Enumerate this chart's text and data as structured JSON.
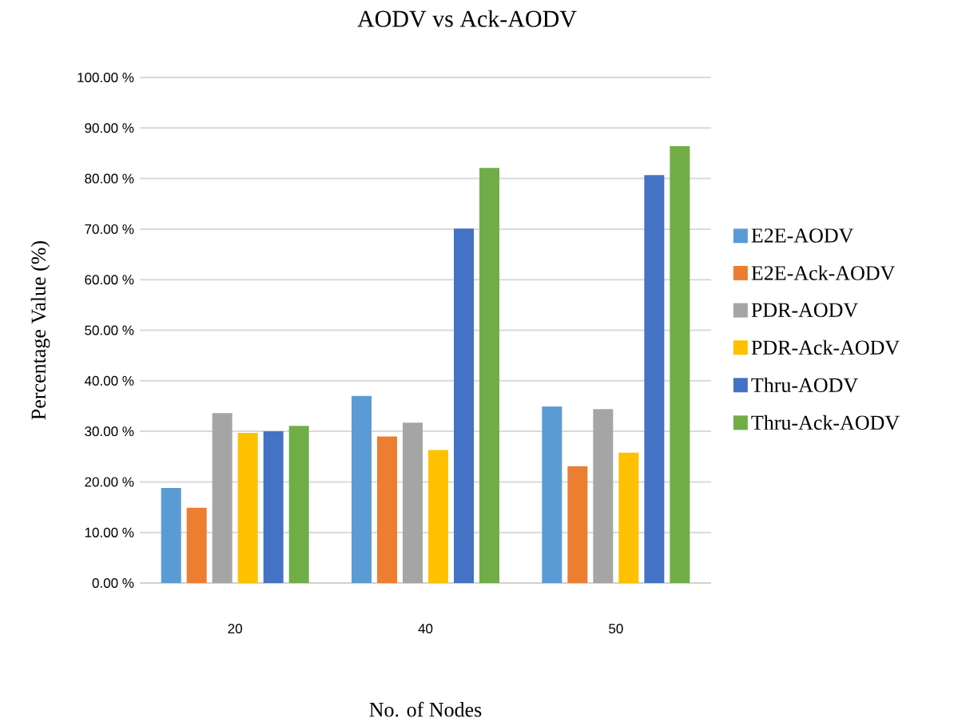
{
  "chart_data": {
    "type": "bar",
    "title": "AODV vs Ack-AODV",
    "xlabel": "No. of Nodes",
    "ylabel": "Percentage Value (%)",
    "categories": [
      "20",
      "40",
      "50"
    ],
    "series": [
      {
        "name": "E2E-AODV",
        "color": "#5b9bd5",
        "values": [
          18.8,
          37.0,
          34.9
        ]
      },
      {
        "name": "E2E-Ack-AODV",
        "color": "#ed7d31",
        "values": [
          14.9,
          29.0,
          23.1
        ]
      },
      {
        "name": "PDR-AODV",
        "color": "#a5a5a5",
        "values": [
          33.6,
          31.7,
          34.4
        ]
      },
      {
        "name": "PDR-Ack-AODV",
        "color": "#ffc000",
        "values": [
          29.7,
          26.3,
          25.8
        ]
      },
      {
        "name": "Thru-AODV",
        "color": "#4472c4",
        "values": [
          30.0,
          70.1,
          80.7
        ]
      },
      {
        "name": "Thru-Ack-AODV",
        "color": "#70ad47",
        "values": [
          31.1,
          82.1,
          86.4
        ]
      }
    ],
    "ylim": [
      0,
      100
    ],
    "yticks": [
      {
        "value": 0,
        "label": "0.00 %"
      },
      {
        "value": 10,
        "label": "10.00 %"
      },
      {
        "value": 20,
        "label": "20.00 %"
      },
      {
        "value": 30,
        "label": "30.00 %"
      },
      {
        "value": 40,
        "label": "40.00 %"
      },
      {
        "value": 50,
        "label": "50.00 %"
      },
      {
        "value": 60,
        "label": "60.00 %"
      },
      {
        "value": 70,
        "label": "70.00 %"
      },
      {
        "value": 80,
        "label": "80.00 %"
      },
      {
        "value": 90,
        "label": "90.00 %"
      },
      {
        "value": 100,
        "label": "100.00 %"
      }
    ],
    "grid": "y",
    "legend": "right"
  }
}
